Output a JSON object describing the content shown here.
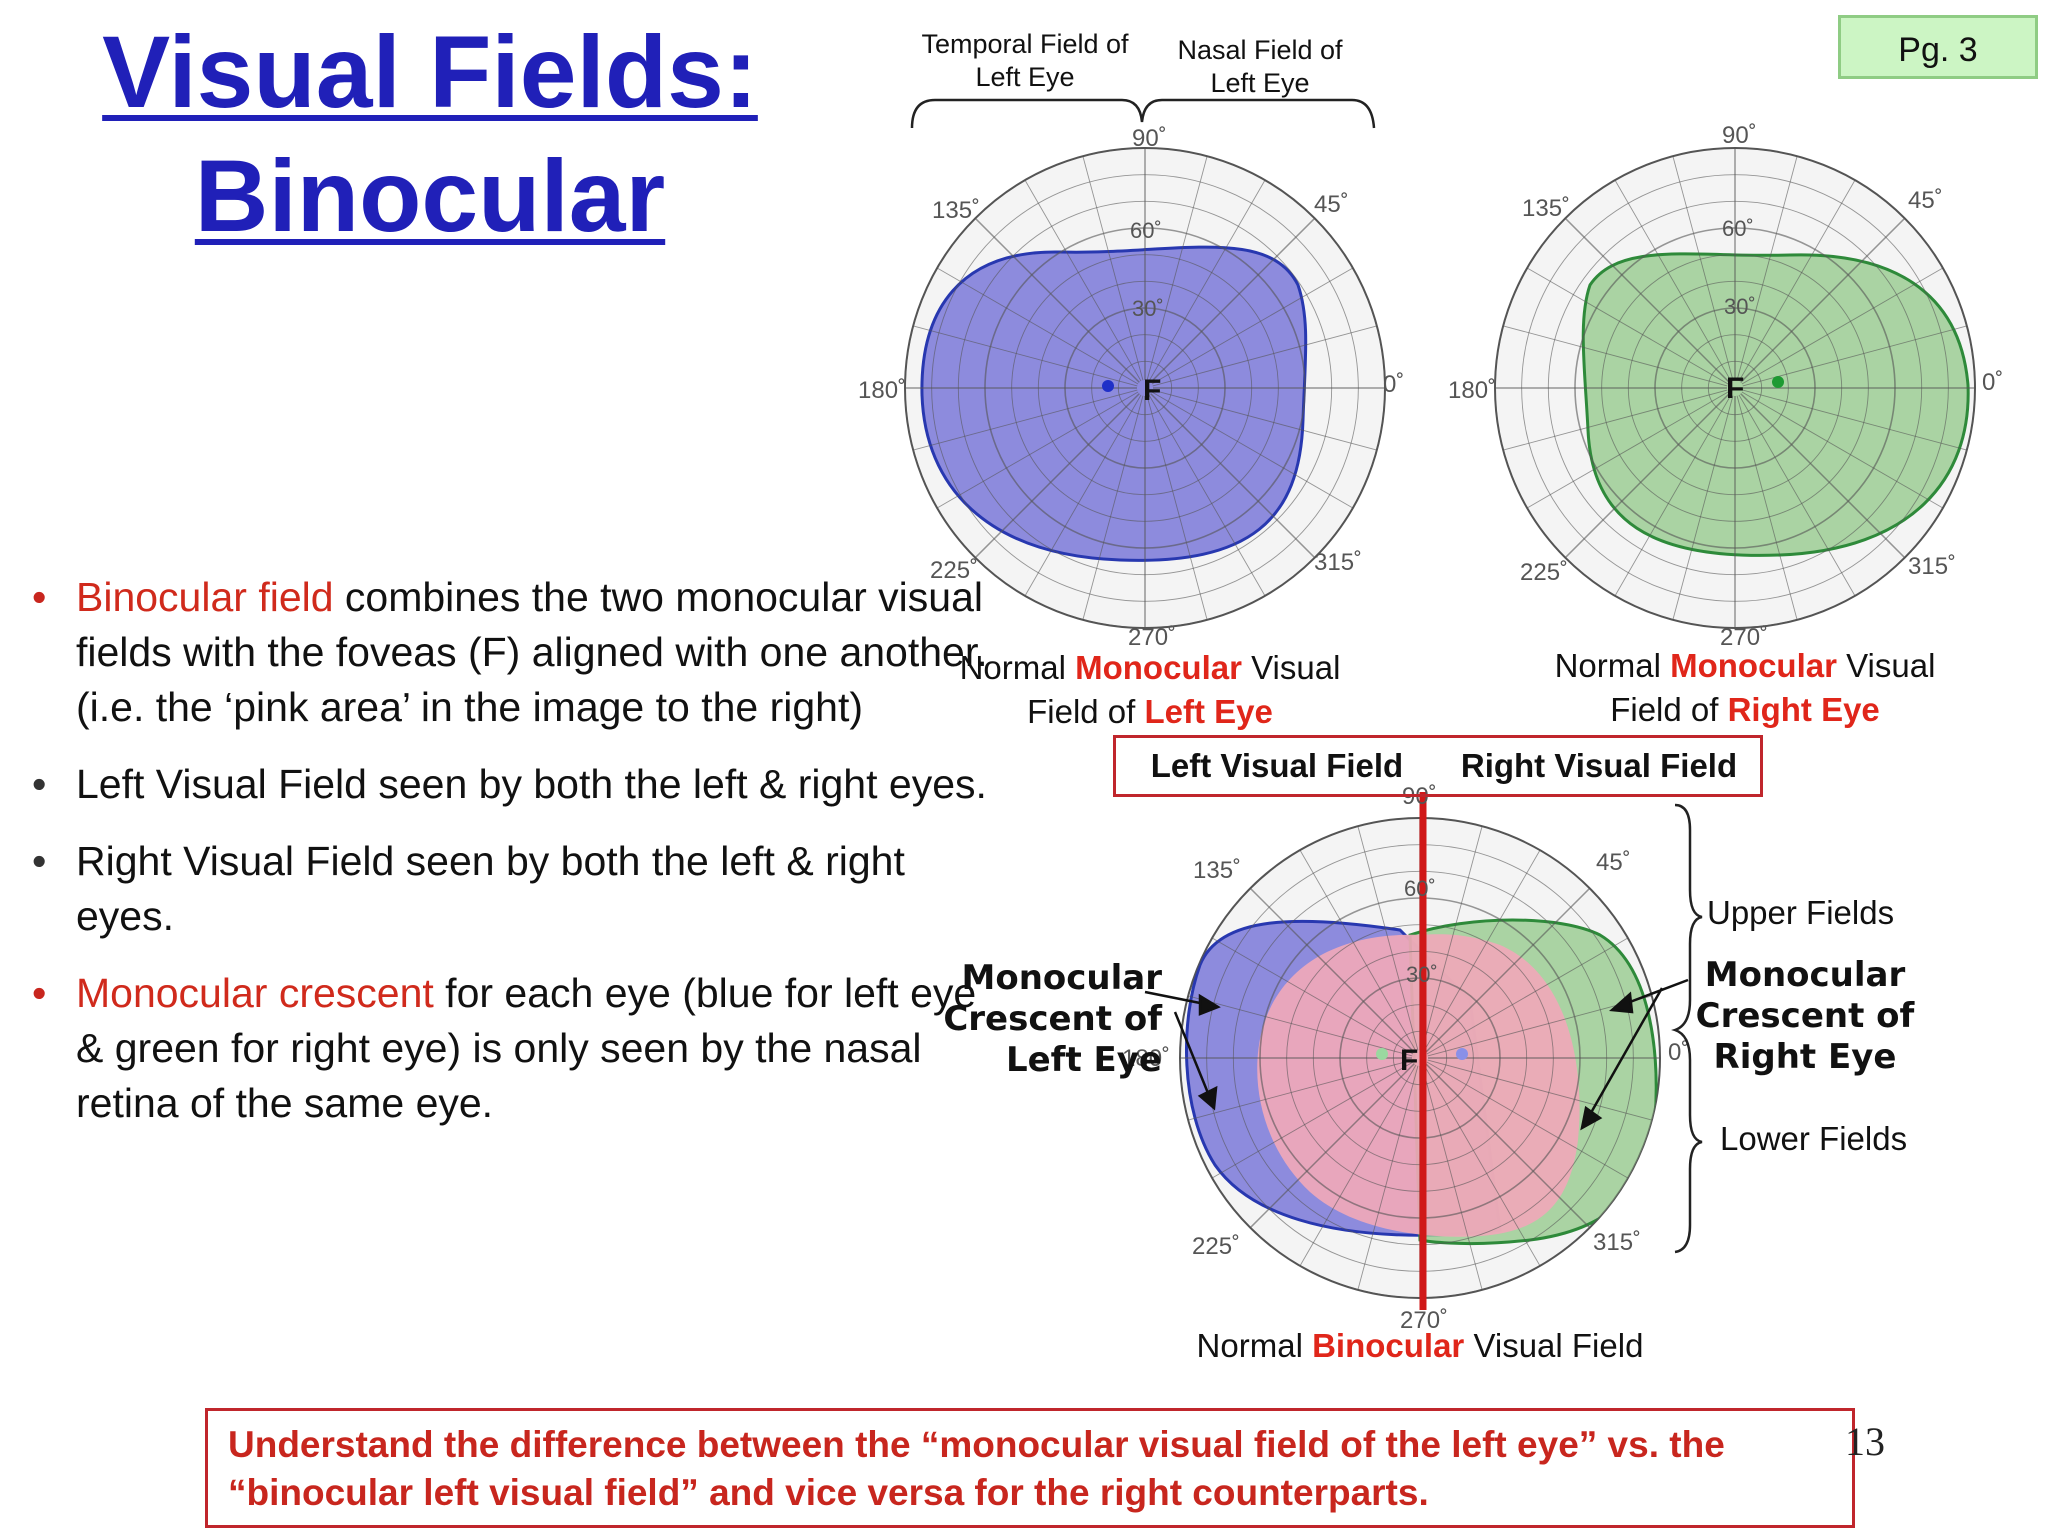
{
  "title_line1": "Visual Fields:",
  "title_line2": "Binocular",
  "page_badge": "Pg. 3",
  "bullets": [
    {
      "lead": "Binocular field",
      "rest": " combines the two monocular visual fields with the foveas (F) aligned with one another. (i.e. the ‘pink area’ in the image to the right)"
    },
    {
      "lead": "",
      "rest": "Left Visual Field seen by both the left & right eyes."
    },
    {
      "lead": "",
      "rest": "Right Visual Field seen by both the left & right eyes."
    },
    {
      "lead": "Monocular crescent",
      "rest": " for each eye (blue for left eye & green for right eye) is only seen by the nasal retina of the same eye."
    }
  ],
  "brackets": {
    "temporal_line1": "Temporal Field of",
    "temporal_line2": "Left Eye",
    "nasal_line1": "Nasal Field of",
    "nasal_line2": "Left Eye"
  },
  "degrees": {
    "d90": "90˚",
    "d45": "45˚",
    "d0": "0˚",
    "d315": "315˚",
    "d270": "270˚",
    "d225": "225˚",
    "d180": "180˚",
    "d135": "135˚",
    "r60": "60˚",
    "r30": "30˚"
  },
  "fovea_label": "F",
  "captions": {
    "left_eye": {
      "pre": "Normal ",
      "red": "Monocular",
      "post": " Visual",
      "line2_pre": "Field of ",
      "line2_red": "Left Eye"
    },
    "right_eye": {
      "pre": "Normal ",
      "red": "Monocular",
      "post": " Visual",
      "line2_pre": "Field of ",
      "line2_red": "Right Eye"
    },
    "binocular": {
      "pre": "Normal ",
      "red": "Binocular",
      "post": " Visual Field"
    }
  },
  "field_labels": {
    "left": "Left Visual Field",
    "right": "Right Visual Field"
  },
  "side_labels": {
    "upper": "Upper Fields",
    "lower": "Lower Fields",
    "crescent_left": [
      "Monocular",
      "Crescent of",
      "Left Eye"
    ],
    "crescent_right": [
      "Monocular",
      "Crescent of",
      "Right Eye"
    ]
  },
  "note": "Understand the difference between the “monocular visual field of the left eye” vs. the “binocular left visual field” and vice versa for the right counterparts.",
  "slide_number": "13",
  "colors": {
    "title": "#2020b8",
    "accent_red": "#d02a1c",
    "blue_field": "#7a78d8",
    "green_field": "#9ccc94",
    "pink_field": "#f0a8b8",
    "meridian": "#d01818"
  }
}
